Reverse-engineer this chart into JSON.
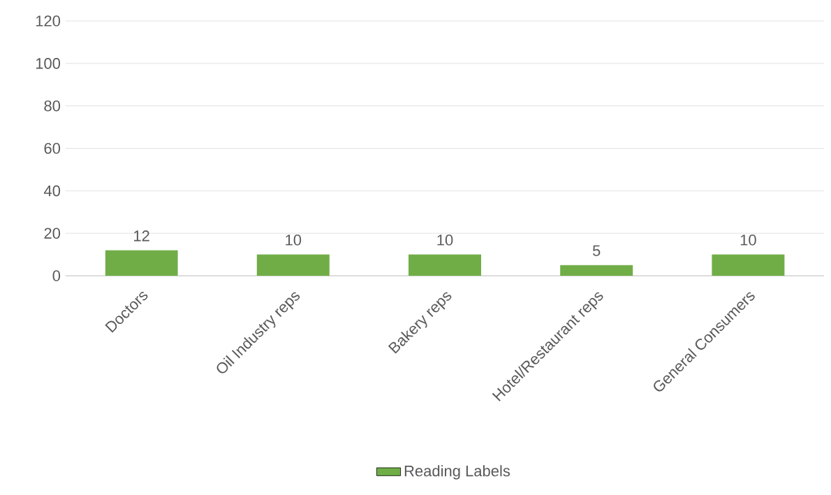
{
  "chart_data": {
    "type": "bar",
    "categories": [
      "Doctors",
      "Oil Industry reps",
      "Bakery reps",
      "Hotel/Restaurant reps",
      "General Consumers"
    ],
    "series": [
      {
        "name": "Reading Labels",
        "color": "#70ad47",
        "values": [
          12,
          10,
          10,
          5,
          10
        ]
      }
    ],
    "ylim": [
      0,
      120
    ],
    "yticks": [
      0,
      20,
      40,
      60,
      80,
      100,
      120
    ],
    "grid": "y",
    "legend": "bottom",
    "data_labels": true
  }
}
